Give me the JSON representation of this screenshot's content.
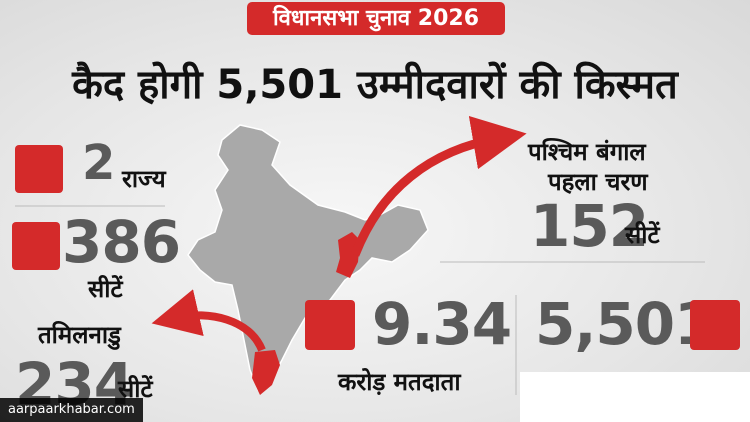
{
  "header": {
    "badge": "विधानसभा चुनाव 2026",
    "headline": "कैद होगी 5,501 उम्मीदवारों की किस्मत"
  },
  "stats": {
    "states": {
      "number": "2",
      "label": "राज्य"
    },
    "seats": {
      "number": "386",
      "label": "सीटें"
    },
    "tamil_nadu": {
      "name": "तमिलनाडु",
      "number": "234",
      "label": "सीटें"
    },
    "west_bengal": {
      "name": "पश्चिम बंगाल",
      "phase": "पहला चरण",
      "number": "152",
      "label": "सीटें"
    },
    "voters": {
      "number": "9.34",
      "label": "करोड़ मतदाता"
    },
    "candidates": {
      "number": "5,501"
    }
  },
  "watermark": "aarpaarkhabar.com"
}
